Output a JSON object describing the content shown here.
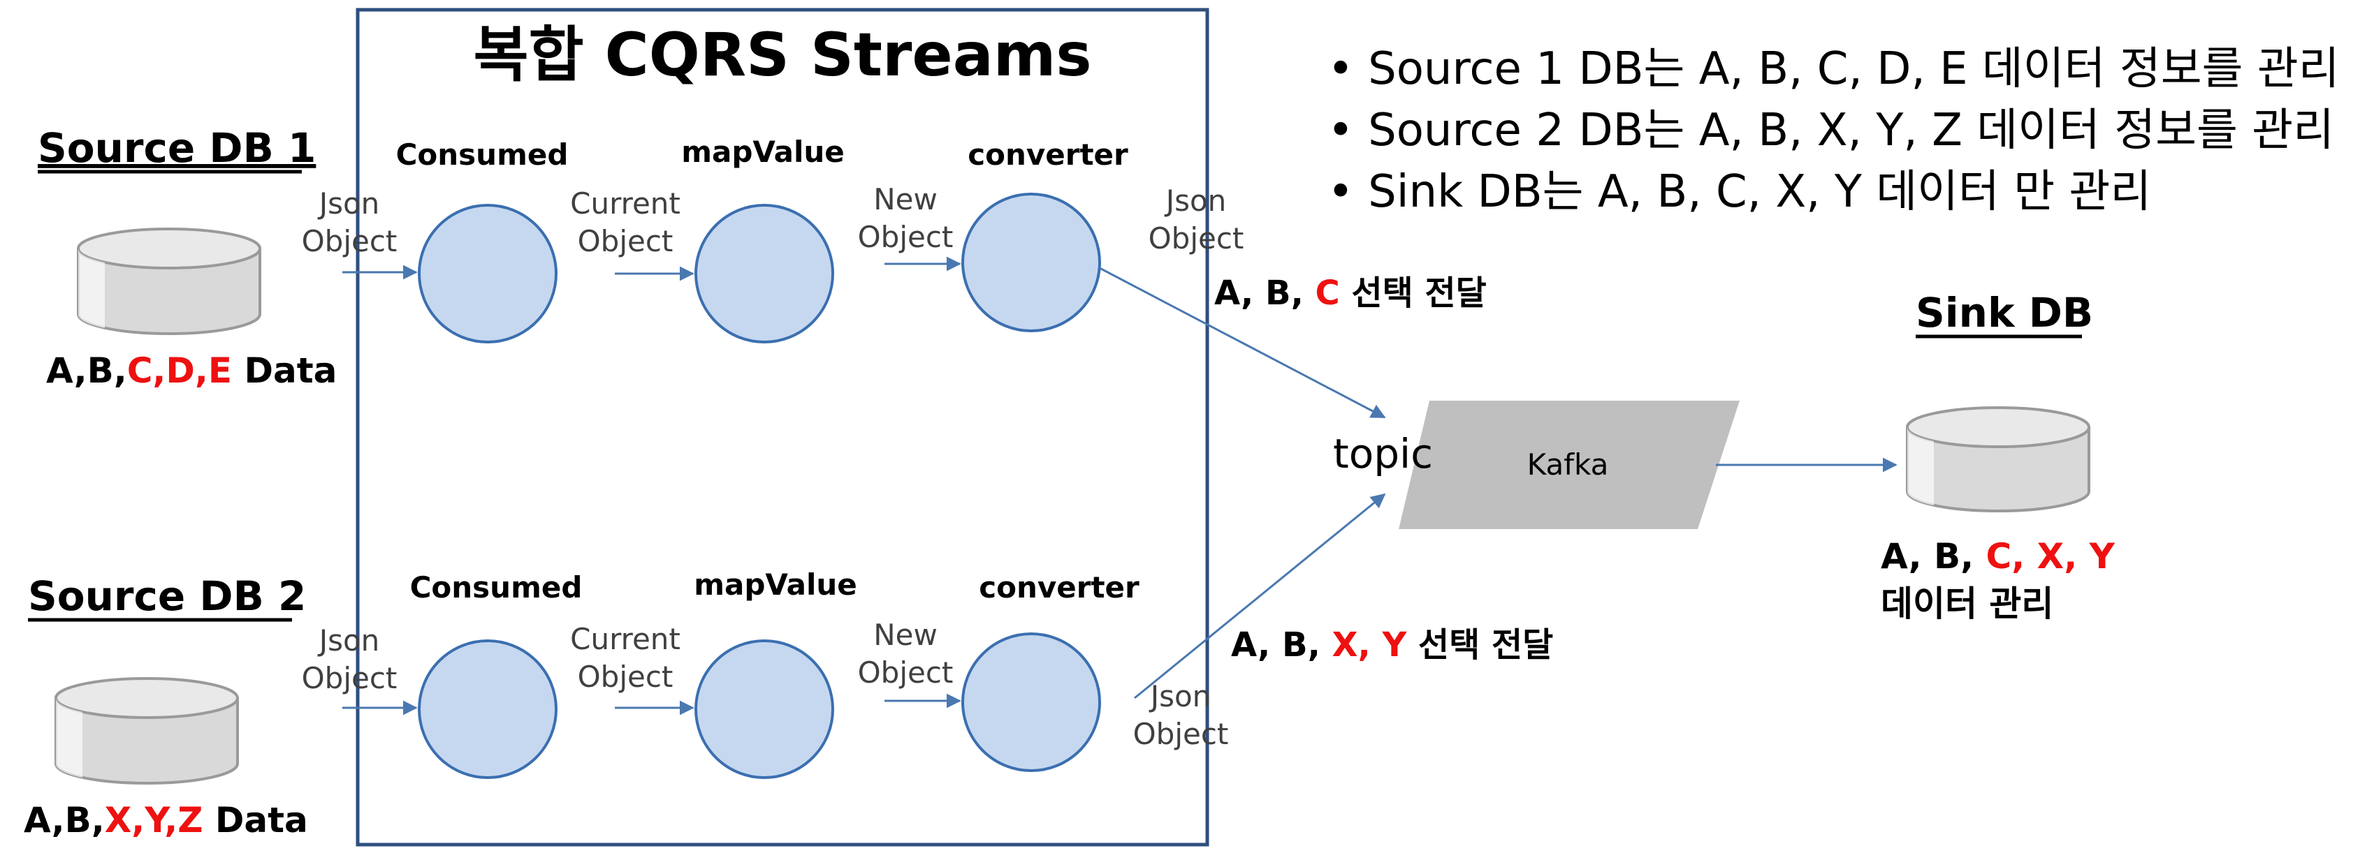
{
  "title": "복합 CQRS Streams",
  "notes": [
    "• Source 1 DB는 A, B, C, D, E 데이터 정보를 관리",
    "• Source 2 DB는 A, B, X, Y, Z 데이터 정보를 관리",
    "• Sink DB는 A, B, C, X, Y 데이터 만 관리"
  ],
  "source1": {
    "title": "Source DB 1",
    "data_prefix": "A,B,",
    "data_highlight": "C,D,E",
    "data_suffix": " Data"
  },
  "source2": {
    "title": "Source DB 2",
    "data_prefix": "A,B,",
    "data_highlight": "X,Y,Z",
    "data_suffix": " Data"
  },
  "stream1": {
    "nodes": [
      "Consumed",
      "mapValue",
      "converter"
    ],
    "edge_labels": [
      [
        "Json",
        "Object"
      ],
      [
        "Current",
        "Object"
      ],
      [
        "New",
        "Object"
      ],
      [
        "Json",
        "Object"
      ]
    ],
    "output_prefix": "A, B, ",
    "output_highlight": "C",
    "output_suffix": " 선택 전달"
  },
  "stream2": {
    "nodes": [
      "Consumed",
      "mapValue",
      "converter"
    ],
    "edge_labels": [
      [
        "Json",
        "Object"
      ],
      [
        "Current",
        "Object"
      ],
      [
        "New",
        "Object"
      ],
      [
        "Json",
        "Object"
      ]
    ],
    "output_prefix": "A, B, ",
    "output_highlight": "X, Y",
    "output_suffix": " 선택 전달"
  },
  "kafka": {
    "label": "Kafka",
    "topic": "topic"
  },
  "sink": {
    "title": "Sink DB",
    "data_prefix": "A, B, ",
    "data_highlight": "C, X, Y",
    "data_line2": "데이터 관리"
  },
  "colors": {
    "arrow": "#4a78b0",
    "node_fill": "#c6d8f0",
    "node_stroke": "#3b6fb0",
    "frame": "#2f4f7f",
    "highlight": "#ee1111",
    "kafka_fill": "#bfbfbf",
    "db_fill": "#d9d9d9"
  }
}
